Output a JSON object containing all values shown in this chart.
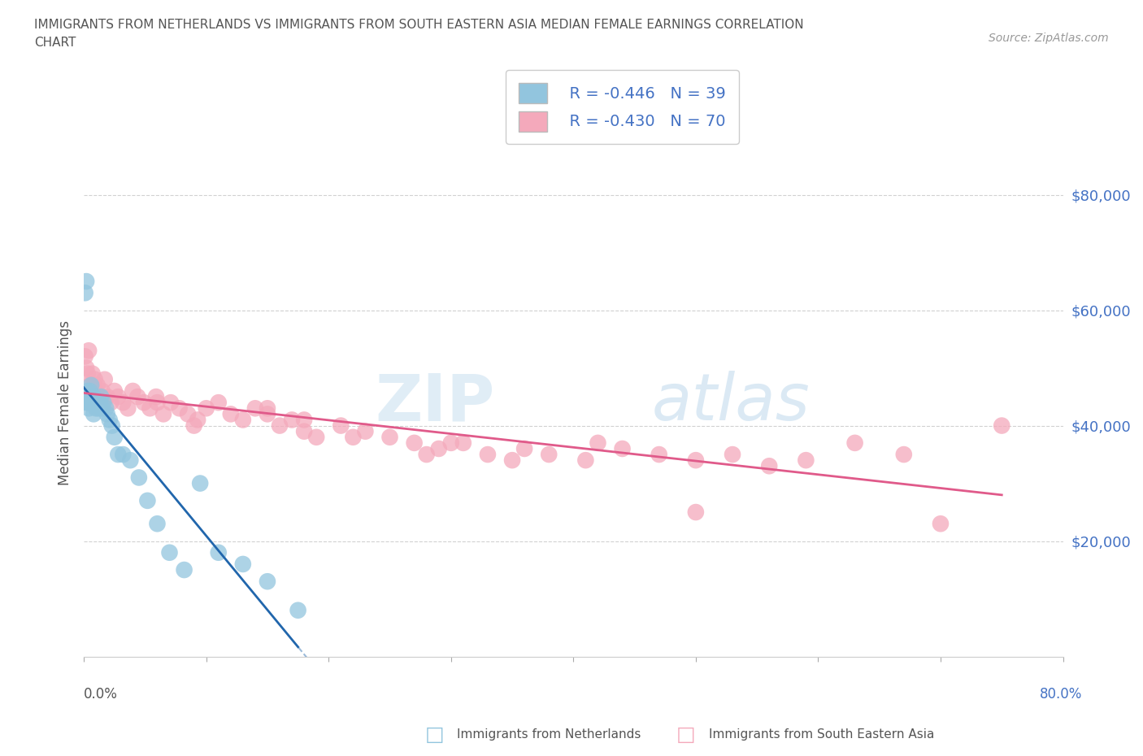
{
  "title_line1": "IMMIGRANTS FROM NETHERLANDS VS IMMIGRANTS FROM SOUTH EASTERN ASIA MEDIAN FEMALE EARNINGS CORRELATION",
  "title_line2": "CHART",
  "source": "Source: ZipAtlas.com",
  "ylabel": "Median Female Earnings",
  "watermark_left": "ZIP",
  "watermark_right": "atlas",
  "legend_blue_r": "R = -0.446",
  "legend_blue_n": "N = 39",
  "legend_pink_r": "R = -0.430",
  "legend_pink_n": "N = 70",
  "yticks": [
    20000,
    40000,
    60000,
    80000
  ],
  "ytick_labels": [
    "$20,000",
    "$40,000",
    "$60,000",
    "$80,000"
  ],
  "xlim": [
    0.0,
    0.8
  ],
  "ylim": [
    0,
    88000
  ],
  "blue_color": "#92c5de",
  "pink_color": "#f4a9bb",
  "blue_line_color": "#2166ac",
  "pink_line_color": "#e05a8a",
  "blue_scatter_x": [
    0.001,
    0.002,
    0.002,
    0.003,
    0.003,
    0.004,
    0.004,
    0.005,
    0.005,
    0.006,
    0.007,
    0.008,
    0.008,
    0.009,
    0.01,
    0.011,
    0.012,
    0.013,
    0.014,
    0.015,
    0.016,
    0.018,
    0.019,
    0.021,
    0.023,
    0.025,
    0.028,
    0.032,
    0.038,
    0.045,
    0.052,
    0.06,
    0.07,
    0.082,
    0.095,
    0.11,
    0.13,
    0.15,
    0.175
  ],
  "blue_scatter_y": [
    63000,
    65000,
    44000,
    44000,
    46000,
    45000,
    43000,
    44000,
    46000,
    47000,
    44000,
    45000,
    42000,
    44000,
    43000,
    44000,
    43000,
    44000,
    45000,
    43000,
    44000,
    43000,
    42000,
    41000,
    40000,
    38000,
    35000,
    35000,
    34000,
    31000,
    27000,
    23000,
    18000,
    15000,
    30000,
    18000,
    16000,
    13000,
    8000
  ],
  "pink_scatter_x": [
    0.001,
    0.002,
    0.003,
    0.004,
    0.005,
    0.006,
    0.007,
    0.008,
    0.009,
    0.01,
    0.011,
    0.013,
    0.015,
    0.017,
    0.019,
    0.022,
    0.025,
    0.028,
    0.032,
    0.036,
    0.04,
    0.044,
    0.049,
    0.054,
    0.059,
    0.065,
    0.071,
    0.078,
    0.085,
    0.093,
    0.1,
    0.11,
    0.12,
    0.13,
    0.14,
    0.15,
    0.16,
    0.17,
    0.18,
    0.19,
    0.21,
    0.23,
    0.25,
    0.27,
    0.29,
    0.31,
    0.33,
    0.36,
    0.38,
    0.41,
    0.44,
    0.47,
    0.5,
    0.53,
    0.56,
    0.59,
    0.63,
    0.67,
    0.7,
    0.75,
    0.5,
    0.3,
    0.18,
    0.22,
    0.35,
    0.42,
    0.28,
    0.15,
    0.09,
    0.06
  ],
  "pink_scatter_y": [
    52000,
    50000,
    49000,
    53000,
    47000,
    46000,
    49000,
    47000,
    48000,
    46000,
    47000,
    45000,
    46000,
    48000,
    45000,
    44000,
    46000,
    45000,
    44000,
    43000,
    46000,
    45000,
    44000,
    43000,
    45000,
    42000,
    44000,
    43000,
    42000,
    41000,
    43000,
    44000,
    42000,
    41000,
    43000,
    42000,
    40000,
    41000,
    39000,
    38000,
    40000,
    39000,
    38000,
    37000,
    36000,
    37000,
    35000,
    36000,
    35000,
    34000,
    36000,
    35000,
    34000,
    35000,
    33000,
    34000,
    37000,
    35000,
    23000,
    40000,
    25000,
    37000,
    41000,
    38000,
    34000,
    37000,
    35000,
    43000,
    40000,
    44000
  ]
}
